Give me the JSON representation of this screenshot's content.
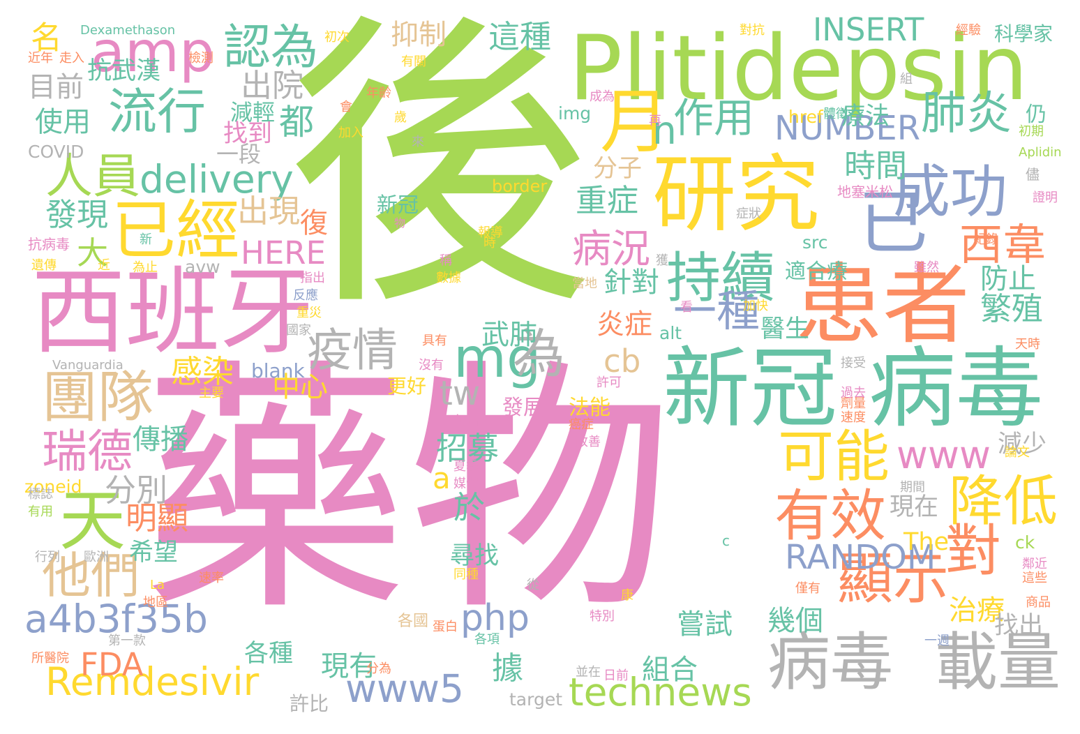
{
  "palette": {
    "green": "#a6d854",
    "pink": "#e78ac3",
    "teal": "#66c2a5",
    "orange": "#fc8d62",
    "yellow": "#ffd92f",
    "blue": "#8da0cb",
    "tan": "#e5c494",
    "gray": "#b3b3b3"
  },
  "words": [
    {
      "text": "後",
      "color": "green"
    },
    {
      "text": "藥物",
      "color": "pink"
    },
    {
      "text": "Plitidepsin",
      "color": "green"
    },
    {
      "text": "西班牙",
      "color": "pink"
    },
    {
      "text": "患者",
      "color": "orange"
    },
    {
      "text": "新冠",
      "color": "teal"
    },
    {
      "text": "病毒",
      "color": "teal"
    },
    {
      "text": "研究",
      "color": "yellow"
    },
    {
      "text": "病毒",
      "color": "gray"
    },
    {
      "text": "載量",
      "color": "gray"
    },
    {
      "text": "amp",
      "color": "pink"
    },
    {
      "text": "認為",
      "color": "teal"
    },
    {
      "text": "流行",
      "color": "teal"
    },
    {
      "text": "人員",
      "color": "green"
    },
    {
      "text": "已經",
      "color": "yellow"
    },
    {
      "text": "delivery",
      "color": "teal"
    },
    {
      "text": "團隊",
      "color": "tan"
    },
    {
      "text": "瑞德",
      "color": "pink"
    },
    {
      "text": "天",
      "color": "green"
    },
    {
      "text": "他們",
      "color": "tan"
    },
    {
      "text": "疫情",
      "color": "gray"
    },
    {
      "text": "mg",
      "color": "teal"
    },
    {
      "text": "為",
      "color": "gray"
    },
    {
      "text": "持續",
      "color": "teal"
    },
    {
      "text": "成功",
      "color": "blue"
    },
    {
      "text": "已",
      "color": "blue"
    },
    {
      "text": "西韋",
      "color": "orange"
    },
    {
      "text": "可能",
      "color": "yellow"
    },
    {
      "text": "有效",
      "color": "orange"
    },
    {
      "text": "降低",
      "color": "yellow"
    },
    {
      "text": "對",
      "color": "orange"
    },
    {
      "text": "顯示",
      "color": "orange"
    },
    {
      "text": "Remdesivir",
      "color": "yellow"
    },
    {
      "text": "technews",
      "color": "green"
    },
    {
      "text": "www5",
      "color": "blue"
    },
    {
      "text": "a4b3f35b",
      "color": "blue"
    },
    {
      "text": "php",
      "color": "blue"
    },
    {
      "text": "www",
      "color": "pink"
    },
    {
      "text": "RANDOM",
      "color": "blue"
    },
    {
      "text": "NUMBER",
      "color": "blue"
    },
    {
      "text": "INSERT",
      "color": "teal"
    },
    {
      "text": "HERE",
      "color": "pink"
    },
    {
      "text": "月",
      "color": "yellow"
    },
    {
      "text": "n",
      "color": "teal"
    },
    {
      "text": "作用",
      "color": "teal"
    },
    {
      "text": "肺炎",
      "color": "teal"
    },
    {
      "text": "都",
      "color": "teal"
    },
    {
      "text": "一種",
      "color": "blue"
    },
    {
      "text": "病況",
      "color": "pink"
    },
    {
      "text": "tw",
      "color": "gray"
    },
    {
      "text": "cb",
      "color": "tan"
    },
    {
      "text": "a",
      "color": "yellow"
    },
    {
      "text": "FDA",
      "color": "orange"
    },
    {
      "text": "出院",
      "color": "gray"
    },
    {
      "text": "目前",
      "color": "gray"
    },
    {
      "text": "使用",
      "color": "teal"
    },
    {
      "text": "發現",
      "color": "teal"
    },
    {
      "text": "出現",
      "color": "tan"
    },
    {
      "text": "大",
      "color": "green"
    },
    {
      "text": "復",
      "color": "orange"
    },
    {
      "text": "抑制",
      "color": "tan"
    },
    {
      "text": "這種",
      "color": "teal"
    },
    {
      "text": "時間",
      "color": "teal"
    },
    {
      "text": "重症",
      "color": "teal"
    },
    {
      "text": "針對",
      "color": "teal"
    },
    {
      "text": "防止",
      "color": "teal"
    },
    {
      "text": "繁殖",
      "color": "teal"
    },
    {
      "text": "炎症",
      "color": "orange"
    },
    {
      "text": "醫生",
      "color": "teal"
    },
    {
      "text": "感染",
      "color": "yellow"
    },
    {
      "text": "中心",
      "color": "yellow"
    },
    {
      "text": "傳播",
      "color": "teal"
    },
    {
      "text": "分別",
      "color": "gray"
    },
    {
      "text": "明顯",
      "color": "orange"
    },
    {
      "text": "招募",
      "color": "teal"
    },
    {
      "text": "於",
      "color": "teal"
    },
    {
      "text": "減少",
      "color": "gray"
    },
    {
      "text": "治療",
      "color": "yellow"
    },
    {
      "text": "幾個",
      "color": "teal"
    },
    {
      "text": "據",
      "color": "teal"
    },
    {
      "text": "武肺",
      "color": "teal"
    },
    {
      "text": "分子",
      "color": "tan"
    },
    {
      "text": "希望",
      "color": "teal"
    },
    {
      "text": "尋找",
      "color": "teal"
    },
    {
      "text": "The",
      "color": "yellow"
    },
    {
      "text": "現在",
      "color": "gray"
    },
    {
      "text": "各種",
      "color": "teal"
    },
    {
      "text": "現有",
      "color": "teal"
    },
    {
      "text": "組合",
      "color": "teal"
    },
    {
      "text": "嘗試",
      "color": "teal"
    },
    {
      "text": "找出",
      "color": "gray"
    },
    {
      "text": "名",
      "color": "yellow"
    },
    {
      "text": "抗武漢",
      "color": "teal"
    },
    {
      "text": "減輕",
      "color": "teal"
    },
    {
      "text": "找到",
      "color": "pink"
    },
    {
      "text": "一段",
      "color": "gray"
    },
    {
      "text": "COVID",
      "color": "gray"
    },
    {
      "text": "科學家",
      "color": "teal"
    },
    {
      "text": "療法",
      "color": "teal"
    },
    {
      "text": "仍",
      "color": "teal"
    },
    {
      "text": "href",
      "color": "yellow"
    },
    {
      "text": "img",
      "color": "teal"
    },
    {
      "text": "border",
      "color": "yellow"
    },
    {
      "text": "src",
      "color": "teal"
    },
    {
      "text": "avw",
      "color": "gray"
    },
    {
      "text": "alt",
      "color": "teal"
    },
    {
      "text": "blank",
      "color": "blue"
    },
    {
      "text": "target",
      "color": "gray"
    },
    {
      "text": "zoneid",
      "color": "yellow"
    },
    {
      "text": "ck",
      "color": "green"
    },
    {
      "text": "c",
      "color": "teal"
    },
    {
      "text": "新冠",
      "color": "teal"
    },
    {
      "text": "適合療",
      "color": "teal"
    },
    {
      "text": "發展",
      "color": "pink"
    },
    {
      "text": "法能",
      "color": "yellow"
    },
    {
      "text": "更好",
      "color": "yellow"
    },
    {
      "text": "許比",
      "color": "gray"
    },
    {
      "text": "Dexamethason",
      "color": "teal"
    },
    {
      "text": "Vanguardia",
      "color": "gray"
    },
    {
      "text": "Aplidin",
      "color": "green"
    },
    {
      "text": "地塞米松",
      "color": "pink"
    },
    {
      "text": "抗病毒",
      "color": "pink"
    },
    {
      "text": "初次",
      "color": "yellow"
    },
    {
      "text": "對抗",
      "color": "yellow"
    },
    {
      "text": "經驗",
      "color": "orange"
    },
    {
      "text": "走入",
      "color": "orange"
    },
    {
      "text": "近年",
      "color": "orange"
    },
    {
      "text": "檢測",
      "color": "orange"
    },
    {
      "text": "有關",
      "color": "yellow"
    },
    {
      "text": "成為",
      "color": "pink"
    },
    {
      "text": "年齡",
      "color": "orange"
    },
    {
      "text": "會",
      "color": "orange"
    },
    {
      "text": "組",
      "color": "gray"
    },
    {
      "text": "體徵",
      "color": "teal"
    },
    {
      "text": "初期",
      "color": "green"
    },
    {
      "text": "儘",
      "color": "gray"
    },
    {
      "text": "證明",
      "color": "pink"
    },
    {
      "text": "再",
      "color": "pink"
    },
    {
      "text": "加入",
      "color": "yellow"
    },
    {
      "text": "歲",
      "color": "yellow"
    },
    {
      "text": "來",
      "color": "gray"
    },
    {
      "text": "症狀",
      "color": "gray"
    },
    {
      "text": "物",
      "color": "pink"
    },
    {
      "text": "報導",
      "color": "yellow"
    },
    {
      "text": "時",
      "color": "yellow"
    },
    {
      "text": "紀錄",
      "color": "orange"
    },
    {
      "text": "新",
      "color": "teal"
    },
    {
      "text": "遺傳",
      "color": "yellow"
    },
    {
      "text": "為止",
      "color": "yellow"
    },
    {
      "text": "近",
      "color": "yellow"
    },
    {
      "text": "指出",
      "color": "pink"
    },
    {
      "text": "稱",
      "color": "pink"
    },
    {
      "text": "數據",
      "color": "yellow"
    },
    {
      "text": "獲",
      "color": "gray"
    },
    {
      "text": "雖然",
      "color": "pink"
    },
    {
      "text": "當地",
      "color": "tan"
    },
    {
      "text": "看",
      "color": "pink"
    },
    {
      "text": "加快",
      "color": "yellow"
    },
    {
      "text": "反應",
      "color": "blue"
    },
    {
      "text": "重災",
      "color": "yellow"
    },
    {
      "text": "國家",
      "color": "gray"
    },
    {
      "text": "天時",
      "color": "orange"
    },
    {
      "text": "具有",
      "color": "orange"
    },
    {
      "text": "沒有",
      "color": "pink"
    },
    {
      "text": "接受",
      "color": "gray"
    },
    {
      "text": "許可",
      "color": "pink"
    },
    {
      "text": "主要",
      "color": "yellow"
    },
    {
      "text": "包括",
      "color": "pink"
    },
    {
      "text": "過去",
      "color": "pink"
    },
    {
      "text": "劑量",
      "color": "orange"
    },
    {
      "text": "速度",
      "color": "orange"
    },
    {
      "text": "癌症",
      "color": "orange"
    },
    {
      "text": "改善",
      "color": "pink"
    },
    {
      "text": "論文",
      "color": "yellow"
    },
    {
      "text": "夏季",
      "color": "pink"
    },
    {
      "text": "媒體",
      "color": "pink"
    },
    {
      "text": "期間",
      "color": "gray"
    },
    {
      "text": "標誌",
      "color": "gray"
    },
    {
      "text": "有用",
      "color": "green"
    },
    {
      "text": "行列",
      "color": "gray"
    },
    {
      "text": "歐洲",
      "color": "gray"
    },
    {
      "text": "鄰近",
      "color": "pink"
    },
    {
      "text": "La",
      "color": "yellow"
    },
    {
      "text": "速率",
      "color": "orange"
    },
    {
      "text": "同種",
      "color": "yellow"
    },
    {
      "text": "僅有",
      "color": "orange"
    },
    {
      "text": "這些",
      "color": "orange"
    },
    {
      "text": "地區",
      "color": "orange"
    },
    {
      "text": "從",
      "color": "gray"
    },
    {
      "text": "康",
      "color": "yellow"
    },
    {
      "text": "特別",
      "color": "pink"
    },
    {
      "text": "商品",
      "color": "orange"
    },
    {
      "text": "第一款",
      "color": "gray"
    },
    {
      "text": "蛋白",
      "color": "orange"
    },
    {
      "text": "各項",
      "color": "teal"
    },
    {
      "text": "一週",
      "color": "blue"
    },
    {
      "text": "所醫院",
      "color": "orange"
    },
    {
      "text": "分為",
      "color": "orange"
    },
    {
      "text": "並在",
      "color": "gray"
    },
    {
      "text": "日前",
      "color": "pink"
    },
    {
      "text": "各國",
      "color": "tan"
    }
  ]
}
